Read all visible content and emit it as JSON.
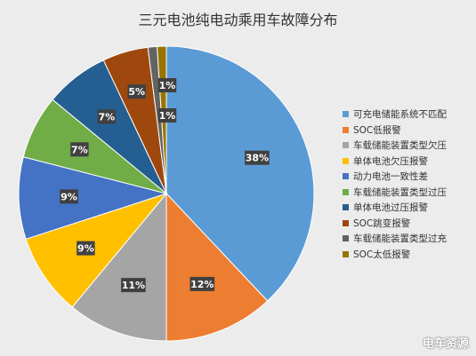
{
  "chart_data": {
    "type": "pie",
    "title": "三元电池纯电动乘用车故障分布",
    "slices": [
      {
        "name": "可充电储能系统不匹配",
        "value": 38,
        "label": "38%",
        "color": "#5b9bd5"
      },
      {
        "name": "SOC低报警",
        "value": 12,
        "label": "12%",
        "color": "#ed7d31"
      },
      {
        "name": "车载储能装置类型欠压",
        "value": 11,
        "label": "11%",
        "color": "#a5a5a5"
      },
      {
        "name": "单体电池欠压报警",
        "value": 9,
        "label": "9%",
        "color": "#ffc000"
      },
      {
        "name": "动力电池一致性差",
        "value": 9,
        "label": "9%",
        "color": "#4472c4"
      },
      {
        "name": "车载储能装置类型过压",
        "value": 7,
        "label": "7%",
        "color": "#70ad47"
      },
      {
        "name": "单体电池过压报警",
        "value": 7,
        "label": "7%",
        "color": "#255e91"
      },
      {
        "name": "SOC跳变报警",
        "value": 5,
        "label": "5%",
        "color": "#9e480e"
      },
      {
        "name": "车载储能装置类型过充",
        "value": 1,
        "label": "1%",
        "color": "#636363"
      },
      {
        "name": "SOC太低报警",
        "value": 1,
        "label": "1%",
        "color": "#997300"
      }
    ],
    "legend_position": "right"
  },
  "watermark": "电车资源"
}
